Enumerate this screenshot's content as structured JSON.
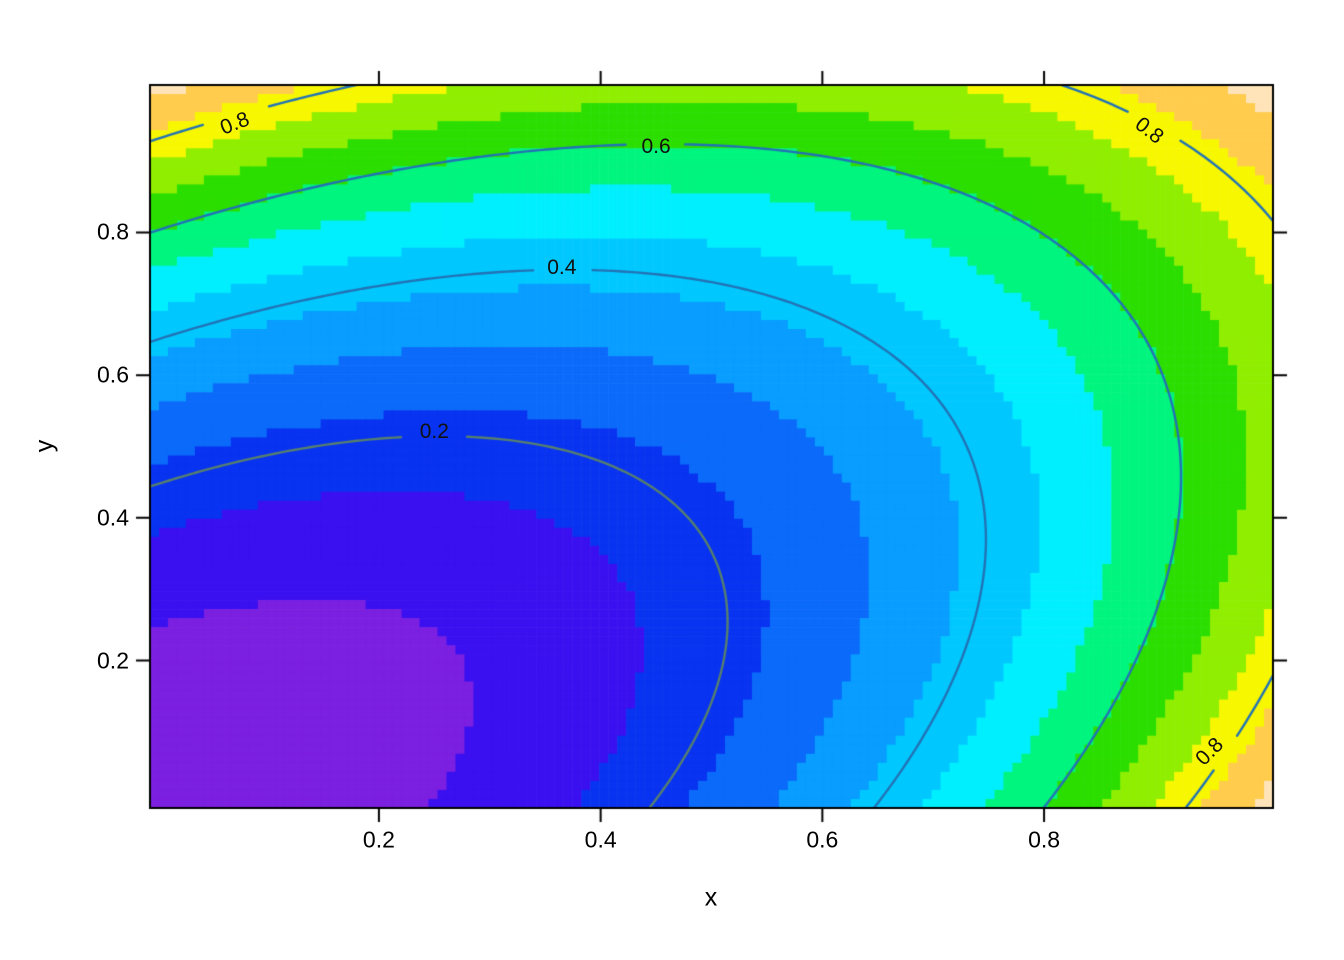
{
  "figure": {
    "background": "#FFFFFF"
  },
  "axes": {
    "x": {
      "label": "x",
      "ticks": [
        "0.2",
        "0.4",
        "0.6",
        "0.8"
      ],
      "tick_values": [
        0.2,
        0.4,
        0.6,
        0.8
      ],
      "range": [
        0,
        1
      ]
    },
    "y": {
      "label": "y",
      "ticks": [
        "0.2",
        "0.4",
        "0.6",
        "0.8"
      ],
      "tick_values": [
        0.2,
        0.4,
        0.6,
        0.8
      ],
      "range": [
        0,
        1
      ]
    },
    "box_color": "#000000",
    "tick_color": "#000000",
    "label_color": "#000000"
  },
  "chart_data": {
    "type": "filled_contour",
    "x": [
      0,
      0.1,
      0.2,
      0.3,
      0.4,
      0.5,
      0.6,
      0.7,
      0.8,
      0.9,
      1.0
    ],
    "y": [
      0,
      0.1,
      0.2,
      0.3,
      0.4,
      0.5,
      0.6,
      0.7,
      0.8,
      0.9,
      1.0
    ],
    "z": [
      [
        0.02,
        0.029,
        0.056,
        0.101,
        0.164,
        0.245,
        0.344,
        0.461,
        0.596,
        0.749,
        0.92
      ],
      [
        0.029,
        0.029,
        0.047,
        0.083,
        0.137,
        0.21,
        0.3,
        0.408,
        0.534,
        0.678,
        0.84
      ],
      [
        0.056,
        0.047,
        0.056,
        0.084,
        0.129,
        0.192,
        0.273,
        0.372,
        0.49,
        0.625,
        0.778
      ],
      [
        0.101,
        0.083,
        0.084,
        0.102,
        0.138,
        0.193,
        0.265,
        0.355,
        0.463,
        0.59,
        0.734
      ],
      [
        0.164,
        0.137,
        0.129,
        0.138,
        0.166,
        0.211,
        0.274,
        0.356,
        0.455,
        0.573,
        0.708
      ],
      [
        0.245,
        0.21,
        0.192,
        0.193,
        0.211,
        0.248,
        0.302,
        0.375,
        0.465,
        0.574,
        0.7
      ],
      [
        0.344,
        0.3,
        0.273,
        0.265,
        0.274,
        0.302,
        0.348,
        0.411,
        0.493,
        0.592,
        0.71
      ],
      [
        0.461,
        0.408,
        0.372,
        0.355,
        0.356,
        0.375,
        0.411,
        0.466,
        0.539,
        0.629,
        0.738
      ],
      [
        0.596,
        0.534,
        0.49,
        0.463,
        0.455,
        0.465,
        0.493,
        0.539,
        0.602,
        0.684,
        0.784
      ],
      [
        0.749,
        0.678,
        0.625,
        0.59,
        0.573,
        0.574,
        0.592,
        0.629,
        0.684,
        0.757,
        0.848
      ],
      [
        0.92,
        0.84,
        0.778,
        0.734,
        0.708,
        0.7,
        0.71,
        0.738,
        0.784,
        0.848,
        0.93
      ]
    ],
    "surface_fit": {
      "x2": 0.9,
      "y2": 0.9,
      "xy": -0.89,
      "c": 0.02
    },
    "fill": {
      "level_min": 0,
      "level_step": 0.075,
      "palette": [
        "#7B1FE0",
        "#3A10F0",
        "#0833F0",
        "#0B6AFA",
        "#089DFF",
        "#00C8FF",
        "#00EFFF",
        "#00F57E",
        "#2BDE00",
        "#90EE00",
        "#F7F700",
        "#FFCC4D",
        "#FFE4BA"
      ]
    },
    "contour_lines": [
      {
        "level": 0.2,
        "label": "0.2",
        "color": "#567F6E"
      },
      {
        "level": 0.4,
        "label": "0.4",
        "color": "#2273B5"
      },
      {
        "level": 0.6,
        "label": "0.6",
        "color": "#2273B5"
      },
      {
        "level": 0.8,
        "label": "0.8",
        "color": "#2273B5"
      }
    ],
    "contour_labels": [
      {
        "text": "0.2",
        "x": 0.25,
        "y": 0.52,
        "rotation": 0
      },
      {
        "text": "0.4",
        "x": 0.365,
        "y": 0.75,
        "rotation": 0
      },
      {
        "text": "0.6",
        "x": 0.45,
        "y": 0.92,
        "rotation": 0
      },
      {
        "text": "0.8",
        "x": 0.07,
        "y": 0.952,
        "rotation": -21
      },
      {
        "text": "0.8",
        "x": 0.895,
        "y": 0.942,
        "rotation": 38
      },
      {
        "text": "0.8",
        "x": 0.95,
        "y": 0.072,
        "rotation": -45
      }
    ],
    "label_color": "#111111"
  }
}
